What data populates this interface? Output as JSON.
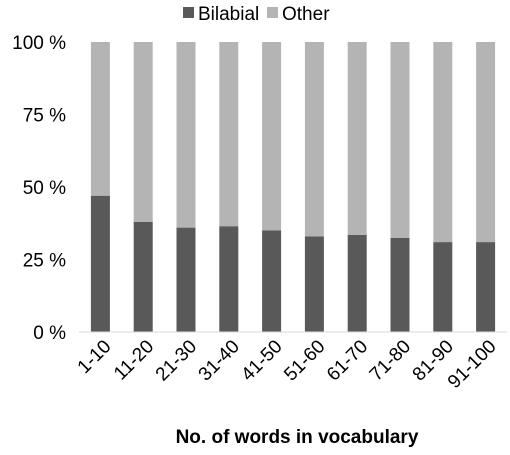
{
  "chart_data": {
    "type": "bar",
    "stacked": true,
    "title": "",
    "xlabel": "No. of words in vocabulary",
    "ylabel": "",
    "ylim": [
      0,
      100
    ],
    "yticks": [
      "0 %",
      "25 %",
      "50 %",
      "75 %",
      "100 %"
    ],
    "categories": [
      "1-10",
      "11-20",
      "21-30",
      "31-40",
      "41-50",
      "51-60",
      "61-70",
      "71-80",
      "81-90",
      "91-100"
    ],
    "series": [
      {
        "name": "Bilabial",
        "color": "#595959",
        "values": [
          47,
          38,
          36,
          36.5,
          35,
          33,
          33.5,
          32.5,
          31,
          31
        ]
      },
      {
        "name": "Other",
        "color": "#b4b4b4",
        "values": [
          53,
          62,
          64,
          63.5,
          65,
          67,
          66.5,
          67.5,
          69,
          69
        ]
      }
    ],
    "legend_position": "top",
    "grid": false,
    "x_tick_rotation": "diagonal"
  }
}
